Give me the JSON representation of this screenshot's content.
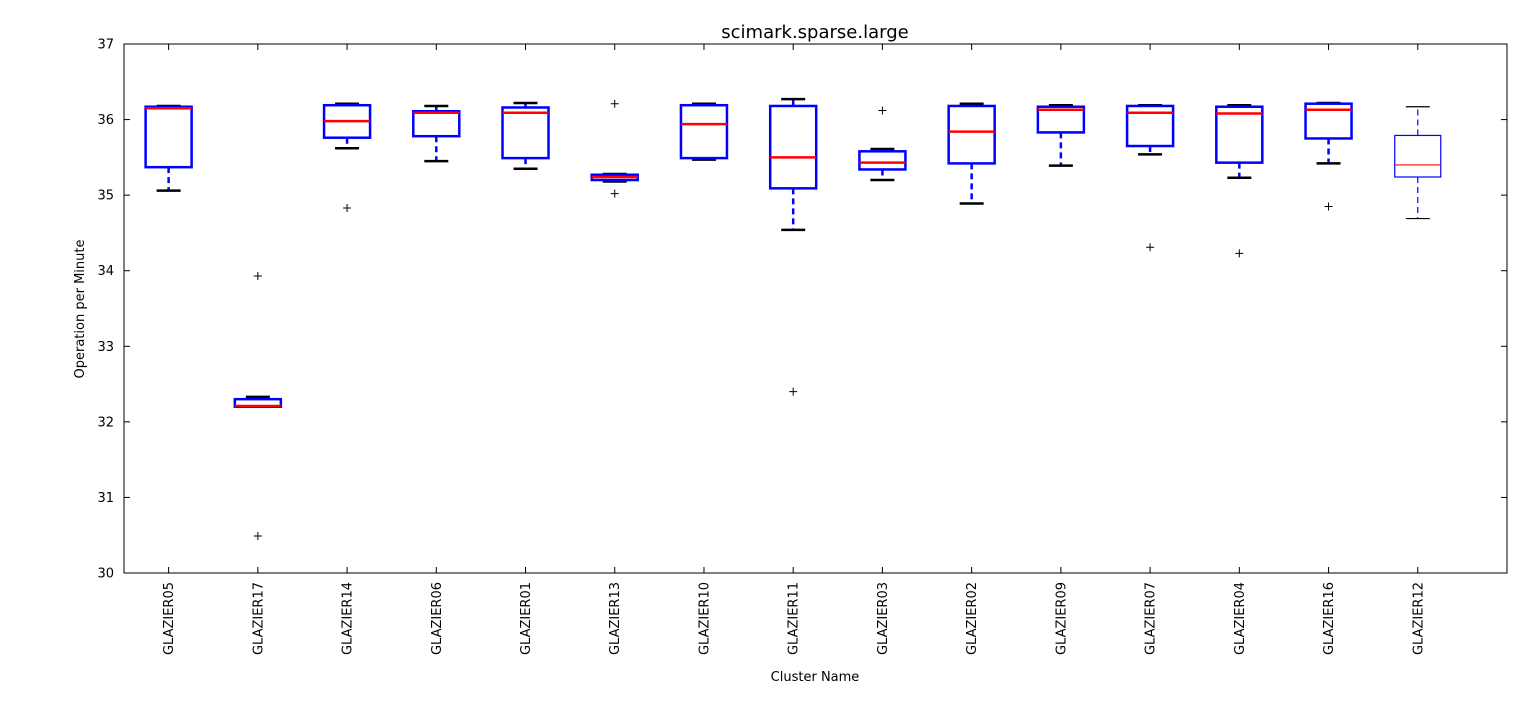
{
  "chart_data": {
    "type": "box",
    "title": "scimark.sparse.large",
    "xlabel": "Cluster Name",
    "ylabel": "Operation per Minute",
    "ylim": [
      30,
      37
    ],
    "yticks": [
      30,
      31,
      32,
      33,
      34,
      35,
      36,
      37
    ],
    "grid": false,
    "colors": {
      "box": "#0000ff",
      "median": "#ff0000",
      "whisker_cap": "#000000",
      "flier": "#000000"
    },
    "categories": [
      "GLAZIER05",
      "GLAZIER17",
      "GLAZIER14",
      "GLAZIER06",
      "GLAZIER01",
      "GLAZIER13",
      "GLAZIER10",
      "GLAZIER11",
      "GLAZIER03",
      "GLAZIER02",
      "GLAZIER09",
      "GLAZIER07",
      "GLAZIER04",
      "GLAZIER16",
      "GLAZIER12"
    ],
    "boxes": [
      {
        "name": "GLAZIER05",
        "whislo": 35.06,
        "q1": 35.37,
        "med": 36.15,
        "q3": 36.17,
        "whishi": 36.18,
        "fliers": []
      },
      {
        "name": "GLAZIER17",
        "whislo": 32.2,
        "q1": 32.2,
        "med": 32.21,
        "q3": 32.3,
        "whishi": 32.33,
        "fliers": [
          33.93,
          30.49
        ]
      },
      {
        "name": "GLAZIER14",
        "whislo": 35.62,
        "q1": 35.76,
        "med": 35.98,
        "q3": 36.19,
        "whishi": 36.21,
        "fliers": [
          34.83
        ]
      },
      {
        "name": "GLAZIER06",
        "whislo": 35.45,
        "q1": 35.78,
        "med": 36.09,
        "q3": 36.11,
        "whishi": 36.18,
        "fliers": []
      },
      {
        "name": "GLAZIER01",
        "whislo": 35.35,
        "q1": 35.49,
        "med": 36.09,
        "q3": 36.16,
        "whishi": 36.22,
        "fliers": []
      },
      {
        "name": "GLAZIER13",
        "whislo": 35.18,
        "q1": 35.2,
        "med": 35.24,
        "q3": 35.27,
        "whishi": 35.28,
        "fliers": [
          36.21,
          35.02
        ]
      },
      {
        "name": "GLAZIER10",
        "whislo": 35.47,
        "q1": 35.49,
        "med": 35.94,
        "q3": 36.19,
        "whishi": 36.21,
        "fliers": []
      },
      {
        "name": "GLAZIER11",
        "whislo": 34.54,
        "q1": 35.09,
        "med": 35.5,
        "q3": 36.18,
        "whishi": 36.27,
        "fliers": [
          32.4
        ]
      },
      {
        "name": "GLAZIER03",
        "whislo": 35.2,
        "q1": 35.34,
        "med": 35.43,
        "q3": 35.58,
        "whishi": 35.61,
        "fliers": [
          36.12
        ]
      },
      {
        "name": "GLAZIER02",
        "whislo": 34.89,
        "q1": 35.42,
        "med": 35.84,
        "q3": 36.18,
        "whishi": 36.21,
        "fliers": []
      },
      {
        "name": "GLAZIER09",
        "whislo": 35.39,
        "q1": 35.83,
        "med": 36.13,
        "q3": 36.17,
        "whishi": 36.19,
        "fliers": []
      },
      {
        "name": "GLAZIER07",
        "whislo": 35.54,
        "q1": 35.65,
        "med": 36.09,
        "q3": 36.18,
        "whishi": 36.19,
        "fliers": [
          34.31
        ]
      },
      {
        "name": "GLAZIER04",
        "whislo": 35.23,
        "q1": 35.43,
        "med": 36.08,
        "q3": 36.17,
        "whishi": 36.19,
        "fliers": [
          34.23
        ]
      },
      {
        "name": "GLAZIER16",
        "whislo": 35.42,
        "q1": 35.75,
        "med": 36.13,
        "q3": 36.21,
        "whishi": 36.22,
        "fliers": [
          34.85
        ]
      },
      {
        "name": "GLAZIER12",
        "whislo": 34.69,
        "q1": 35.24,
        "med": 35.4,
        "q3": 35.79,
        "whishi": 36.17,
        "fliers": []
      }
    ]
  }
}
